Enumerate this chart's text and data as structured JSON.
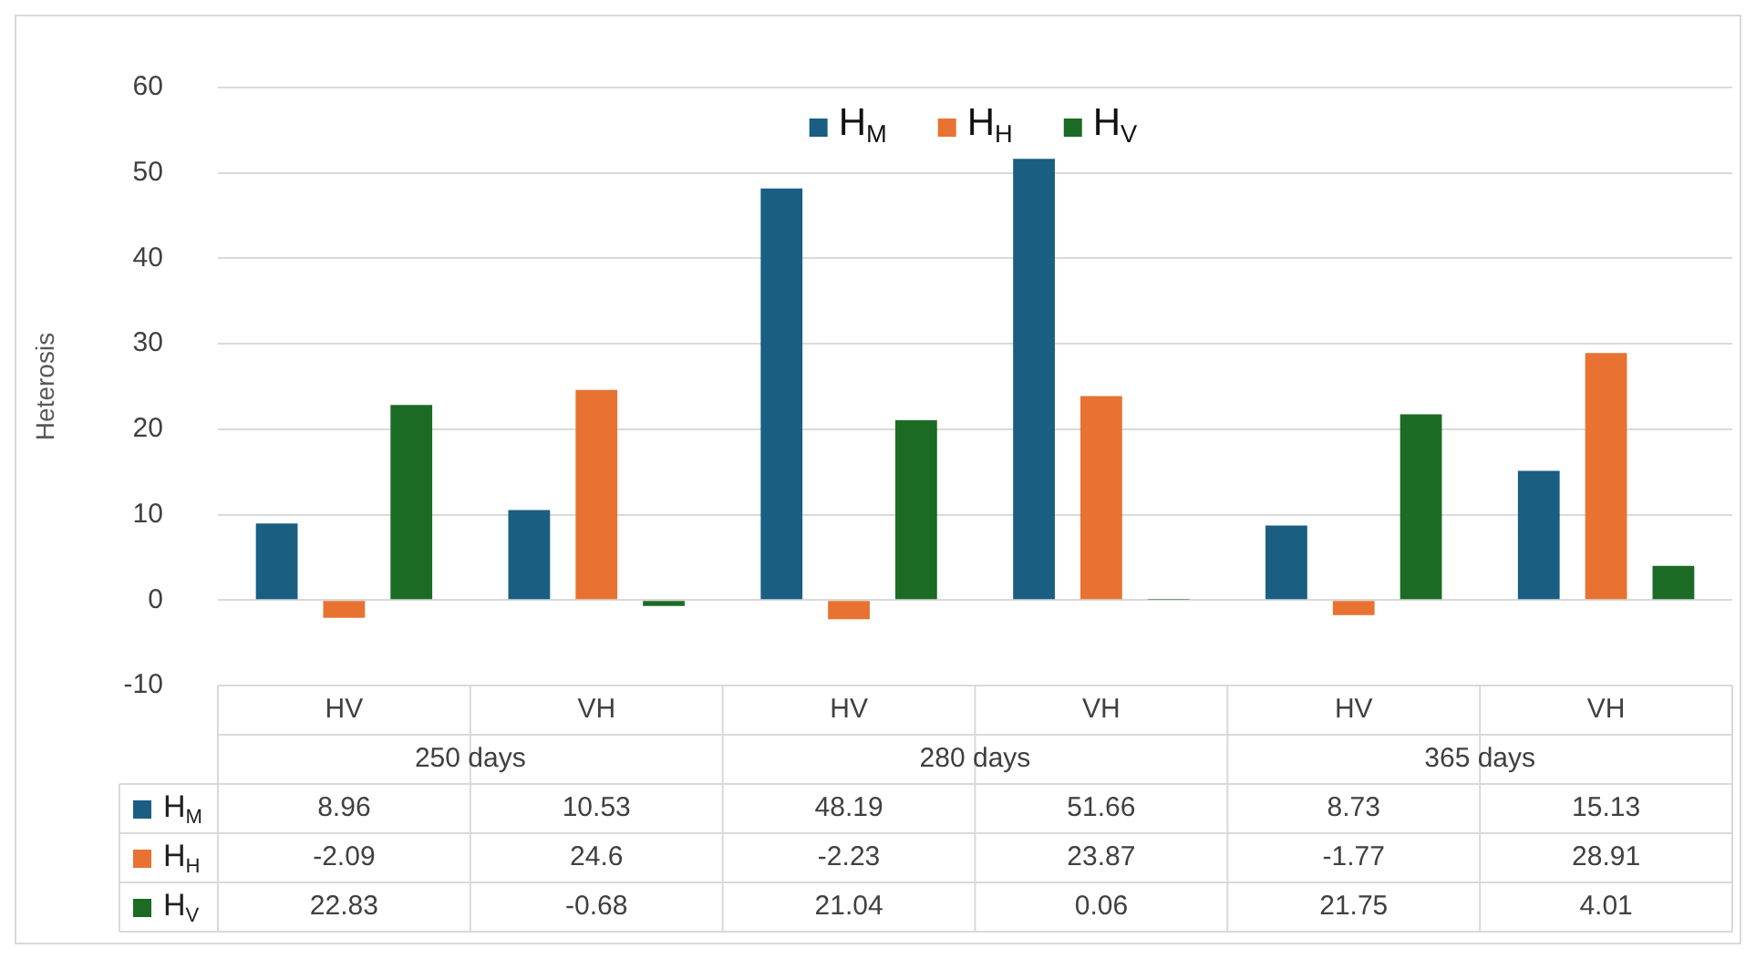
{
  "chart_data": {
    "type": "bar",
    "ylabel": "Heterosis",
    "categories": [
      "HV",
      "VH",
      "HV",
      "VH",
      "HV",
      "VH"
    ],
    "annotations": [
      "250 days",
      "280 days",
      "365 days"
    ],
    "series": [
      {
        "name": "H$_{M}$",
        "color": "#1a5e82",
        "values": [
          8.96,
          10.53,
          48.19,
          51.66,
          8.73,
          15.13
        ]
      },
      {
        "name": "H$_{H}$",
        "color": "#e87232",
        "values": [
          -2.09,
          24.6,
          -2.23,
          23.87,
          -1.77,
          28.91
        ]
      },
      {
        "name": "H$_{V}$",
        "color": "#1b6b24",
        "values": [
          22.83,
          -0.68,
          21.04,
          0.06,
          21.75,
          4.01
        ]
      }
    ],
    "ylim": [
      -10,
      60
    ],
    "yticks": [
      -10,
      0,
      10,
      20,
      30,
      40,
      50,
      60
    ],
    "grid": "y",
    "legend": "top",
    "data_labels": true
  }
}
